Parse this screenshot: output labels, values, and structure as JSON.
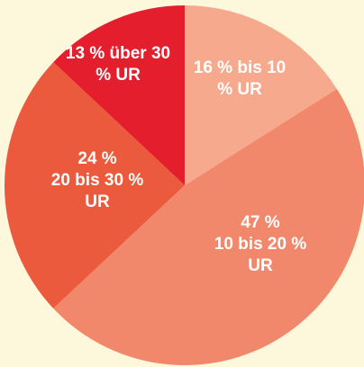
{
  "chart_data": {
    "type": "pie",
    "categories": [
      "bis 10 % UR",
      "10 bis 20 % UR",
      "20 bis 30 % UR",
      "über 30 % UR"
    ],
    "values": [
      16,
      47,
      24,
      13
    ],
    "value_labels": [
      "16 %",
      "47 %",
      "24 %",
      "13 %"
    ],
    "colors": [
      "#f6a98c",
      "#f2886b",
      "#ec5a3e",
      "#e41e2c"
    ]
  }
}
